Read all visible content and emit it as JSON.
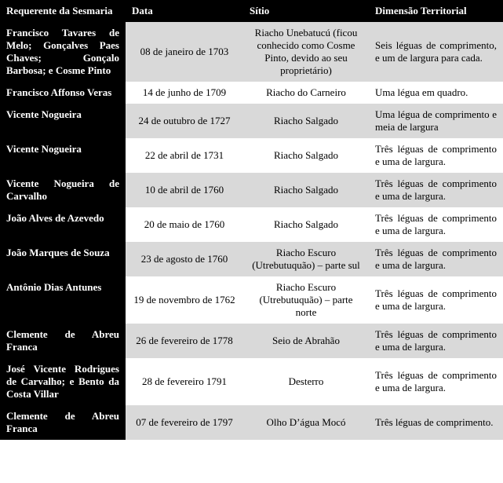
{
  "headers": {
    "col1": "Requerente da Sesmaria",
    "col2": "Data",
    "col3": "Sítio",
    "col4": "Dimensão Territorial"
  },
  "rows": [
    {
      "requerente": "Francisco Tavares de Melo; Gonçalves Paes Chaves; Gonçalo Barbosa; e Cosme Pinto",
      "data": "08 de janeiro de 1703",
      "sitio": "Riacho Unebatucú (ficou conhecido como Cosme Pinto, devido ao seu proprietário)",
      "dimensao": "Seis léguas de comprimento, e um de largura para cada.",
      "band": "gray"
    },
    {
      "requerente": "Francisco Affonso Veras",
      "data": "14 de junho de 1709",
      "sitio": "Riacho do Carneiro",
      "dimensao": "Uma légua em quadro.",
      "band": "white"
    },
    {
      "requerente": "Vicente Nogueira",
      "data": "24 de outubro de 1727",
      "sitio": "Riacho Salgado",
      "dimensao": "Uma légua de comprimento e meia de largura",
      "band": "gray"
    },
    {
      "requerente": "Vicente Nogueira",
      "data": "22 de abril de 1731",
      "sitio": "Riacho Salgado",
      "dimensao": "Três léguas de comprimento e uma de largura.",
      "band": "white"
    },
    {
      "requerente": "Vicente Nogueira de Carvalho",
      "data": "10 de abril de 1760",
      "sitio": "Riacho Salgado",
      "dimensao": "Três léguas de comprimento e uma de largura.",
      "band": "gray"
    },
    {
      "requerente": "João Alves de Azevedo",
      "data": "20 de maio de 1760",
      "sitio": "Riacho Salgado",
      "dimensao": "Três léguas de comprimento e uma de largura.",
      "band": "white"
    },
    {
      "requerente": "João Marques de Souza",
      "data": "23 de agosto de 1760",
      "sitio": "Riacho Escuro (Utrebutuquão) – parte sul",
      "dimensao": "Três léguas de comprimento e uma de largura.",
      "band": "gray"
    },
    {
      "requerente": "Antônio Dias Antunes",
      "data": "19 de novembro de 1762",
      "sitio": "Riacho Escuro (Utrebutuquão) – parte norte",
      "dimensao": "Três léguas de comprimento e uma de largura.",
      "band": "white"
    },
    {
      "requerente": "Clemente de Abreu Franca",
      "data": "26 de fevereiro de 1778",
      "sitio": "Seio de Abrahão",
      "dimensao": "Três léguas de comprimento e uma de largura.",
      "band": "gray"
    },
    {
      "requerente": "José Vicente Rodrigues de Carvalho; e Bento da Costa Villar",
      "data": "28 de fevereiro 1791",
      "sitio": "Desterro",
      "dimensao": "Três léguas de comprimento e uma de largura.",
      "band": "white"
    },
    {
      "requerente": "Clemente de Abreu Franca",
      "data": "07 de fevereiro de 1797",
      "sitio": "Olho D’água Mocó",
      "dimensao": "Três léguas de comprimento.",
      "band": "gray"
    }
  ]
}
